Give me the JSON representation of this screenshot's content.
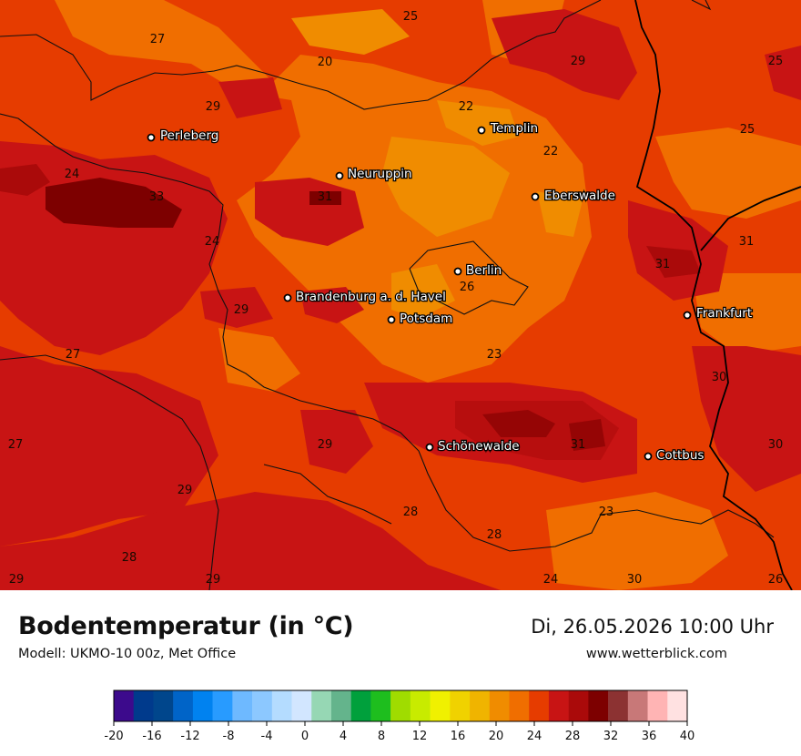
{
  "title": "Bodentemperatur (in °C)",
  "model": "Modell: UKMO-10 00z, Met Office",
  "datetime": "Di, 26.05.2026 10:00 Uhr",
  "website": "www.wetterblick.com",
  "cities": [
    {
      "name": "Perleberg"
    },
    {
      "name": "Neuruppin"
    },
    {
      "name": "Templin"
    },
    {
      "name": "Eberswalde"
    },
    {
      "name": "Berlin"
    },
    {
      "name": "Brandenburg a. d. Havel"
    },
    {
      "name": "Potsdam"
    },
    {
      "name": "Frankfurt"
    },
    {
      "name": "Schönewalde"
    },
    {
      "name": "Cottbus"
    }
  ],
  "value_labels": [
    "25",
    "27",
    "20",
    "29",
    "25",
    "29",
    "22",
    "22",
    "25",
    "24",
    "33",
    "31",
    "24",
    "31",
    "31",
    "26",
    "29",
    "27",
    "23",
    "30",
    "27",
    "29",
    "31",
    "30",
    "29",
    "28",
    "23",
    "28",
    "29",
    "28",
    "24",
    "30",
    "26"
  ],
  "legend": {
    "ticks": [
      "-20",
      "-16",
      "-12",
      "-8",
      "-4",
      "0",
      "4",
      "8",
      "12",
      "16",
      "20",
      "24",
      "28",
      "32",
      "36",
      "40"
    ],
    "colors": [
      "#3c0a8c",
      "#003a8c",
      "#00468c",
      "#0064c8",
      "#0082f0",
      "#289bff",
      "#6eb9ff",
      "#8cc8ff",
      "#b4dcff",
      "#d2e6ff",
      "#96d7b4",
      "#64b48c",
      "#00a03c",
      "#1ebe1e",
      "#a0dc00",
      "#c8eb00",
      "#f0f000",
      "#f0d200",
      "#f0b400",
      "#f08c00",
      "#f06e00",
      "#e63c00",
      "#c81414",
      "#aa0a0a",
      "#7d0000",
      "#8c3232",
      "#c87878",
      "#ffb4b4",
      "#ffe1e1"
    ]
  }
}
